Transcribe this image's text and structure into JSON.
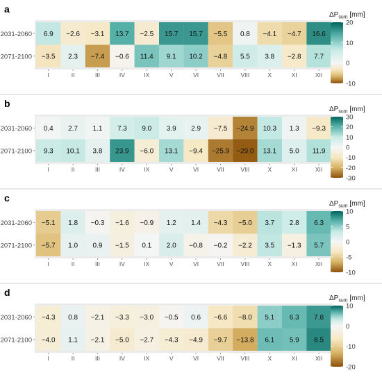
{
  "colors": {
    "neg_dark": "#8c510a",
    "neg_mid": "#d8b365",
    "neg_light": "#f6e8c3",
    "neutral": "#f5f5f5",
    "pos_light": "#c7eae5",
    "pos_mid": "#5ab4ac",
    "pos_dark": "#01665e",
    "panel_bg": "#ebebeb"
  },
  "chart_data": [
    {
      "type": "heatmap",
      "panel_label": "a",
      "categories": [
        "I",
        "II",
        "III",
        "IV",
        "IX",
        "V",
        "VI",
        "VII",
        "VIII",
        "X",
        "XI",
        "XII"
      ],
      "rows": [
        "2031-2060",
        "2071-2100"
      ],
      "values": [
        [
          6.9,
          -2.6,
          -3.1,
          13.7,
          -2.5,
          15.7,
          15.7,
          -5.5,
          0.8,
          -4.1,
          -4.7,
          16.6
        ],
        [
          -3.5,
          2.3,
          -7.4,
          -0.6,
          11.4,
          9.1,
          10.2,
          -4.8,
          5.5,
          3.8,
          -2.8,
          7.7
        ]
      ],
      "value_labels": [
        [
          "6.9",
          "−2.6",
          "−3.1",
          "13.7",
          "−2.5",
          "15.7",
          "15.7",
          "−5.5",
          "0.8",
          "−4.1",
          "−4.7",
          "16.6"
        ],
        [
          "−3.5",
          "2.3",
          "−7.4",
          "−0.6",
          "11.4",
          "9.1",
          "10.2",
          "−4.8",
          "5.5",
          "3.8",
          "−2.8",
          "7.7"
        ]
      ],
      "legend": {
        "title_main": "ΔP",
        "title_sub": "sum",
        "title_unit": " [mm]",
        "min": -10,
        "max": 20,
        "ticks": [
          20,
          10,
          0,
          -10
        ],
        "tick_labels": [
          "20",
          "10",
          "0",
          "-10"
        ]
      }
    },
    {
      "type": "heatmap",
      "panel_label": "b",
      "categories": [
        "I",
        "II",
        "III",
        "IV",
        "IX",
        "V",
        "VI",
        "VII",
        "VIII",
        "X",
        "XI",
        "XII"
      ],
      "rows": [
        "2031-2060",
        "2071-2100"
      ],
      "values": [
        [
          0.4,
          2.7,
          1.1,
          7.3,
          9.0,
          3.9,
          2.9,
          -7.5,
          -24.9,
          10.3,
          1.3,
          -9.3
        ],
        [
          9.3,
          10.1,
          3.8,
          23.9,
          -6.0,
          13.1,
          -9.4,
          -25.9,
          -29.0,
          13.1,
          5.0,
          11.9
        ]
      ],
      "value_labels": [
        [
          "0.4",
          "2.7",
          "1.1",
          "7.3",
          "9.0",
          "3.9",
          "2.9",
          "−7.5",
          "−24.9",
          "10.3",
          "1.3",
          "−9.3"
        ],
        [
          "9.3",
          "10.1",
          "3.8",
          "23.9",
          "−6.0",
          "13.1",
          "−9.4",
          "−25.9",
          "−29.0",
          "13.1",
          "5.0",
          "11.9"
        ]
      ],
      "legend": {
        "title_main": "ΔP",
        "title_sub": "sum",
        "title_unit": " [mm]",
        "min": -30,
        "max": 30,
        "ticks": [
          30,
          20,
          10,
          0,
          -10,
          -20,
          -30
        ],
        "tick_labels": [
          "30",
          "20",
          "10",
          "0",
          "-10",
          "-20",
          "-30"
        ]
      }
    },
    {
      "type": "heatmap",
      "panel_label": "c",
      "categories": [
        "I",
        "II",
        "III",
        "IV",
        "IX",
        "V",
        "VI",
        "VII",
        "VIII",
        "X",
        "XI",
        "XII"
      ],
      "rows": [
        "2031-2060",
        "2071-2100"
      ],
      "values": [
        [
          -5.1,
          1.8,
          -0.3,
          -1.6,
          -0.9,
          1.2,
          1.4,
          -4.3,
          -5.0,
          3.7,
          2.8,
          6.3
        ],
        [
          -5.7,
          1.0,
          0.9,
          -1.5,
          0.1,
          2.0,
          -0.8,
          -0.2,
          -2.2,
          3.5,
          -1.3,
          5.7
        ]
      ],
      "value_labels": [
        [
          "−5.1",
          "1.8",
          "−0.3",
          "−1.6",
          "−0.9",
          "1.2",
          "1.4",
          "−4.3",
          "−5.0",
          "3.7",
          "2.8",
          "6.3"
        ],
        [
          "−5.7",
          "1.0",
          "0.9",
          "−1.5",
          "0.1",
          "2.0",
          "−0.8",
          "−0.2",
          "−2.2",
          "3.5",
          "−1.3",
          "5.7"
        ]
      ],
      "legend": {
        "title_main": "ΔP",
        "title_sub": "sum",
        "title_unit": " [mm]",
        "min": -10,
        "max": 10,
        "ticks": [
          10,
          5,
          0,
          -5,
          -10
        ],
        "tick_labels": [
          "10",
          "5",
          "0",
          "-5",
          "-10"
        ]
      }
    },
    {
      "type": "heatmap",
      "panel_label": "d",
      "categories": [
        "I",
        "II",
        "III",
        "IV",
        "IX",
        "V",
        "VI",
        "VII",
        "VIII",
        "X",
        "XI",
        "XII"
      ],
      "rows": [
        "2031-2060",
        "2071-2100"
      ],
      "values": [
        [
          -4.3,
          0.8,
          -2.1,
          -3.3,
          -3.0,
          -0.5,
          0.6,
          -6.6,
          -8.0,
          5.1,
          6.3,
          7.8
        ],
        [
          -4.0,
          1.1,
          -2.1,
          -5.0,
          -2.7,
          -4.3,
          -4.9,
          -9.7,
          -13.8,
          6.1,
          5.9,
          8.5
        ]
      ],
      "value_labels": [
        [
          "−4.3",
          "0.8",
          "−2.1",
          "−3.3",
          "−3.0",
          "−0.5",
          "0.6",
          "−6.6",
          "−8.0",
          "5.1",
          "6.3",
          "7.8"
        ],
        [
          "−4.0",
          "1.1",
          "−2.1",
          "−5.0",
          "−2.7",
          "−4.3",
          "−4.9",
          "−9.7",
          "−13.8",
          "6.1",
          "5.9",
          "8.5"
        ]
      ],
      "legend": {
        "title_main": "ΔP",
        "title_sub": "sum",
        "title_unit": " [mm]",
        "min": -20,
        "max": 10,
        "ticks": [
          10,
          0,
          -10,
          -20
        ],
        "tick_labels": [
          "10",
          "0",
          "-10",
          "-20"
        ]
      }
    }
  ]
}
